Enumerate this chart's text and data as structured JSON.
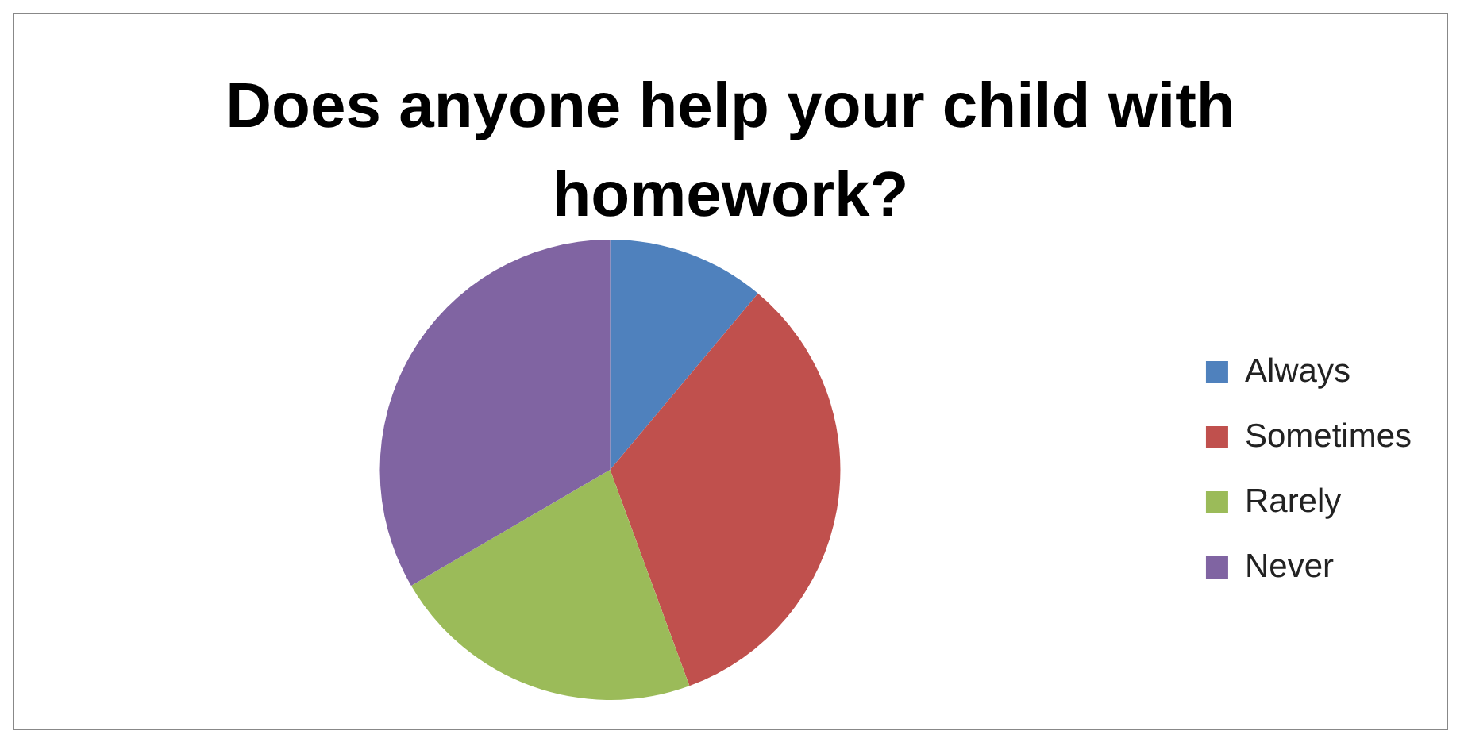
{
  "chart_data": {
    "type": "pie",
    "title": "Does anyone help your child with homework?",
    "categories": [
      "Always",
      "Sometimes",
      "Rarely",
      "Never"
    ],
    "values": [
      11.1,
      33.3,
      22.2,
      33.4
    ],
    "colors": [
      "#4f81bd",
      "#c0504d",
      "#9bbb59",
      "#8064a2"
    ],
    "legend": "right"
  }
}
